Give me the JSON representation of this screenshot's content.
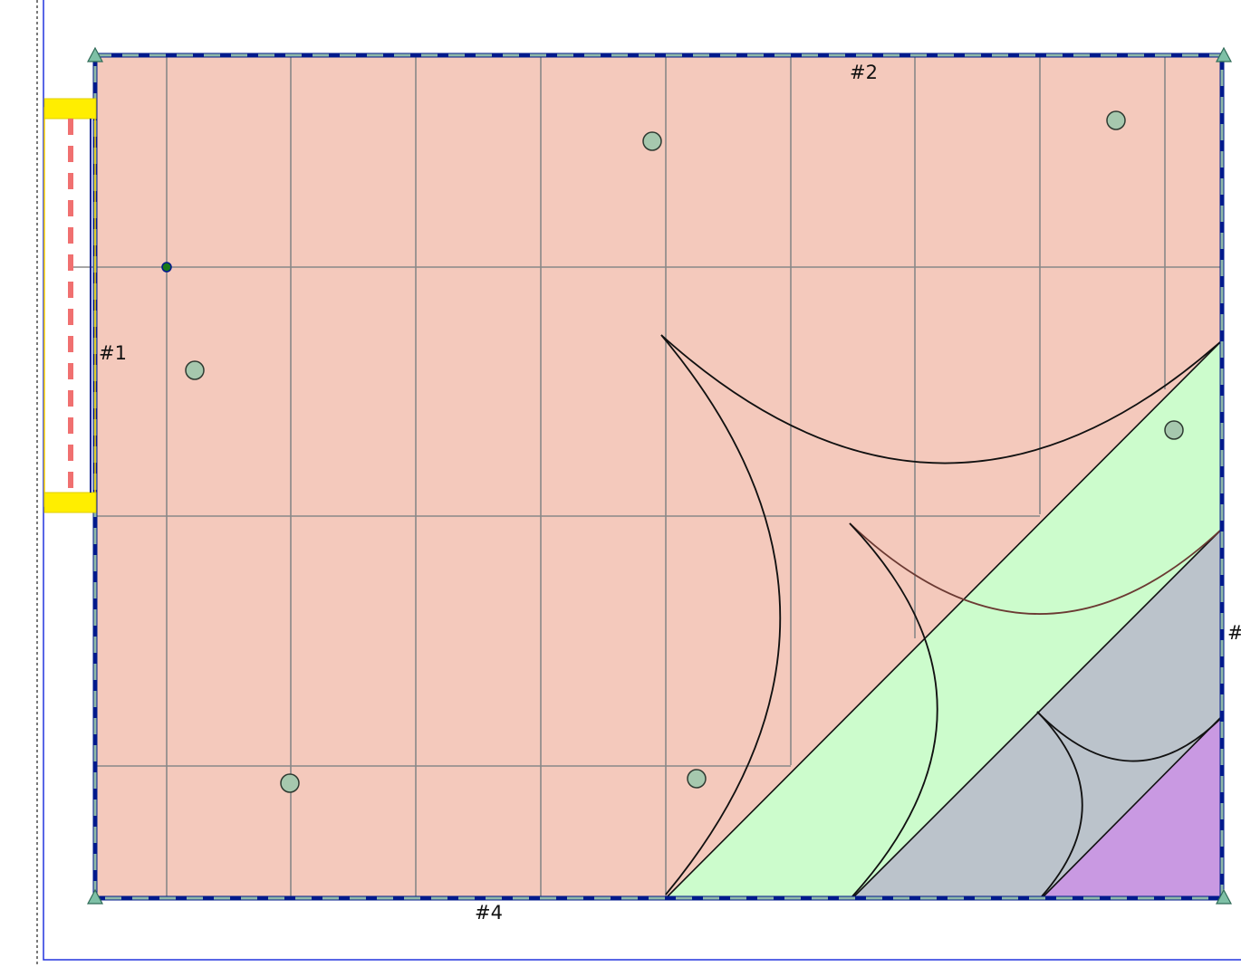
{
  "wall_labels": {
    "left": "#1",
    "top": "#2",
    "right": "#",
    "bottom": "#4"
  },
  "colors": {
    "floor": "#f4c9bc",
    "zone_green": "#ccfccc",
    "zone_gray": "#bbc3cb",
    "zone_purple": "#c999e2",
    "room_outline": "#001a8c",
    "room_dash": "#8fb9a8",
    "grid": "#888888",
    "door_highlight": "#ffee00",
    "door_dash": "#f07070",
    "page_frame": "#2233dd",
    "sensor_fill": "#a6c8ae"
  },
  "icons": {
    "corner": "triangle-marker-icon",
    "sensor": "circle-marker-icon",
    "anchor": "dot-marker-icon"
  }
}
